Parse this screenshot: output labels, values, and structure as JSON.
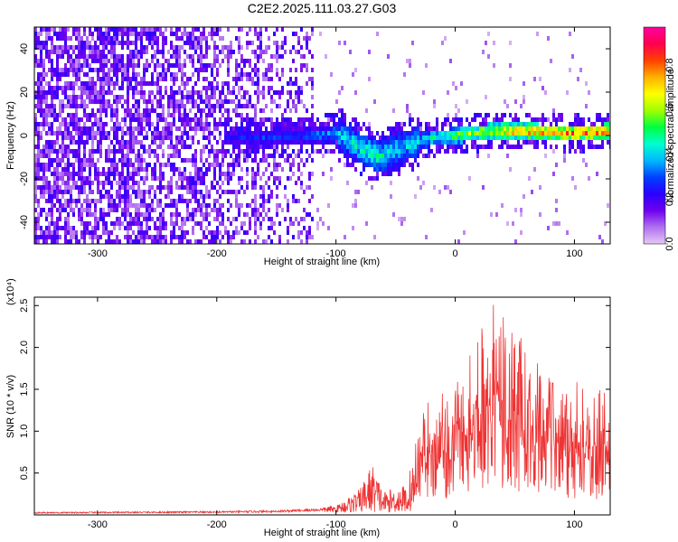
{
  "title": "C2E2.2025.111.03.27.G03",
  "chart_data": [
    {
      "type": "heatmap",
      "xlabel": "Height of straight line (km)",
      "ylabel": "Frequency (Hz)",
      "xlim": [
        -353,
        130
      ],
      "ylim": [
        -50,
        50
      ],
      "xticks": [
        -300,
        -200,
        -100,
        0,
        100
      ],
      "yticks": [
        -40,
        -20,
        0,
        20,
        40
      ],
      "colorbar": {
        "label": "Normalized spectral amplitude",
        "range": [
          0,
          0.97
        ],
        "ticks": [
          0.0,
          0.2,
          0.4,
          0.6,
          0.8
        ],
        "colormap": [
          "#e6c8f5",
          "#b070f0",
          "#7000ee",
          "#2a00ff",
          "#0040ff",
          "#00b8ff",
          "#00ffd0",
          "#00ff40",
          "#a0ff00",
          "#ffff00",
          "#ffb000",
          "#ff4000",
          "#ff0050",
          "#ff00a0"
        ]
      },
      "ridge": [
        {
          "x": -190,
          "y": 0,
          "amp": 0.28
        },
        {
          "x": -150,
          "y": 0,
          "amp": 0.3
        },
        {
          "x": -120,
          "y": 1,
          "amp": 0.34
        },
        {
          "x": -100,
          "y": 2,
          "amp": 0.42
        },
        {
          "x": -80,
          "y": -5,
          "amp": 0.48
        },
        {
          "x": -65,
          "y": -9,
          "amp": 0.5
        },
        {
          "x": -45,
          "y": -4,
          "amp": 0.42
        },
        {
          "x": -20,
          "y": 0,
          "amp": 0.5
        },
        {
          "x": 0,
          "y": 1,
          "amp": 0.6
        },
        {
          "x": 30,
          "y": 3,
          "amp": 0.75
        },
        {
          "x": 60,
          "y": 3,
          "amp": 0.82
        },
        {
          "x": 100,
          "y": 2,
          "amp": 0.85
        },
        {
          "x": 130,
          "y": 3,
          "amp": 0.88
        }
      ],
      "noise_extent_x": [
        -353,
        -120
      ]
    },
    {
      "type": "line",
      "xlabel": "Height of straight line (km)",
      "ylabel": "SNR (10 * v/v)",
      "y_multiplier": "(x10⁴)",
      "xlim": [
        -353,
        130
      ],
      "ylim": [
        0,
        2.6
      ],
      "xticks": [
        -300,
        -200,
        -100,
        0,
        100
      ],
      "yticks": [
        0.5,
        1.0,
        1.5,
        2.0,
        2.5
      ],
      "color": "#ee3333",
      "envelope": [
        {
          "x": -353,
          "y": 0.03
        },
        {
          "x": -200,
          "y": 0.04
        },
        {
          "x": -150,
          "y": 0.05
        },
        {
          "x": -100,
          "y": 0.08
        },
        {
          "x": -80,
          "y": 0.28
        },
        {
          "x": -70,
          "y": 0.6
        },
        {
          "x": -60,
          "y": 0.25
        },
        {
          "x": -40,
          "y": 0.35
        },
        {
          "x": -30,
          "y": 1.2
        },
        {
          "x": -20,
          "y": 1.45
        },
        {
          "x": 0,
          "y": 1.6
        },
        {
          "x": 20,
          "y": 2.2
        },
        {
          "x": 33,
          "y": 2.55
        },
        {
          "x": 50,
          "y": 2.2
        },
        {
          "x": 70,
          "y": 1.9
        },
        {
          "x": 100,
          "y": 1.6
        },
        {
          "x": 130,
          "y": 1.5
        }
      ]
    }
  ]
}
